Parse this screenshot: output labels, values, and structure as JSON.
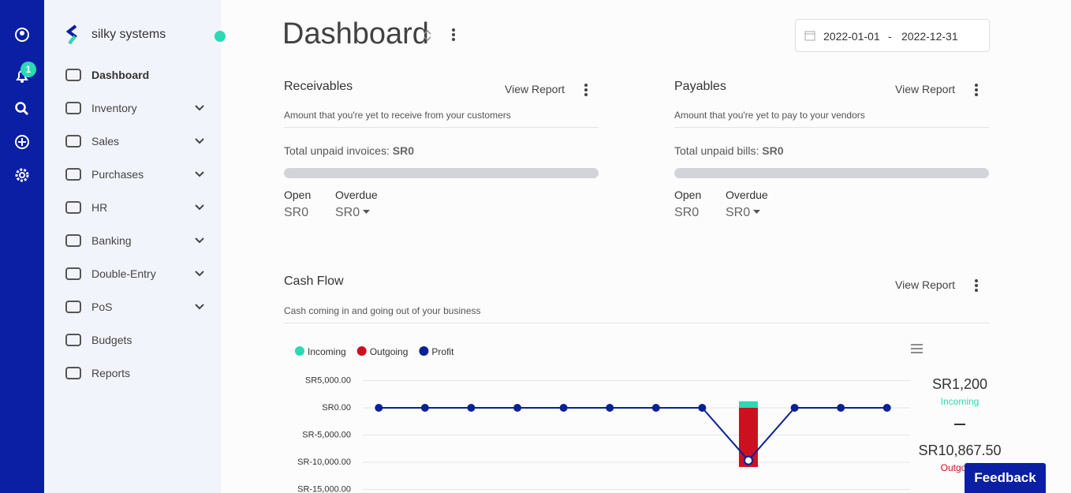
{
  "sidebar": {
    "notification_badge": "1",
    "brand": "silky systems",
    "nav": [
      "Dashboard",
      "Inventory",
      "Sales",
      "Purchases",
      "HR",
      "Banking",
      "Double-Entry",
      "PoS",
      "Budgets",
      "Reports"
    ]
  },
  "header": {
    "title": "Dashboard",
    "date_start": "2022-01-01",
    "date_separator": "-",
    "date_end": "2022-12-31"
  },
  "receivables": {
    "title": "Receivables",
    "link": "View Report",
    "description": "Amount that you're yet to receive from your customers",
    "total_label": "Total unpaid invoices:",
    "total_value": "SR0",
    "open_label": "Open",
    "open_value": "SR0",
    "overdue_label": "Overdue",
    "overdue_value": "SR0"
  },
  "payables": {
    "title": "Payables",
    "link": "View Report",
    "description": "Amount that you're yet to pay to your vendors",
    "total_label": "Total unpaid bills:",
    "total_value": "SR0",
    "open_label": "Open",
    "open_value": "SR0",
    "overdue_label": "Overdue",
    "overdue_value": "SR0"
  },
  "cash_flow": {
    "title": "Cash Flow",
    "link": "View Report",
    "description": "Cash coming in and going out of your business",
    "summary": {
      "incoming_value": "SR1,200",
      "incoming_label": "Incoming",
      "outgoing_value": "SR10,867.50",
      "outgoing_label": "Outgoing"
    }
  },
  "chart_data": {
    "type": "bar-line",
    "categories": [
      null,
      null,
      null,
      null,
      null,
      null,
      null,
      null,
      null,
      null,
      null,
      null
    ],
    "series": [
      {
        "name": "Incoming",
        "color": "#2bd9b4",
        "type": "bar",
        "values": [
          0,
          0,
          0,
          0,
          0,
          0,
          0,
          0,
          1200,
          0,
          0,
          0
        ]
      },
      {
        "name": "Outgoing",
        "color": "#cc1020",
        "type": "bar",
        "values": [
          0,
          0,
          0,
          0,
          0,
          0,
          0,
          0,
          -10867.5,
          0,
          0,
          0
        ]
      },
      {
        "name": "Profit",
        "color": "#0a2196",
        "type": "line",
        "values": [
          0,
          0,
          0,
          0,
          0,
          0,
          0,
          0,
          -9667.5,
          0,
          0,
          0
        ]
      }
    ],
    "ylim": [
      -16000,
      6000
    ],
    "yticks": [
      {
        "value": 5000,
        "label": "SR5,000.00"
      },
      {
        "value": 0,
        "label": "SR0.00"
      },
      {
        "value": -5000,
        "label": "SR-5,000.00"
      },
      {
        "value": -10000,
        "label": "SR-10,000.00"
      },
      {
        "value": -15000,
        "label": "SR-15,000.00"
      }
    ],
    "grid": true,
    "legend": "top-left"
  },
  "feedback": "Feedback"
}
